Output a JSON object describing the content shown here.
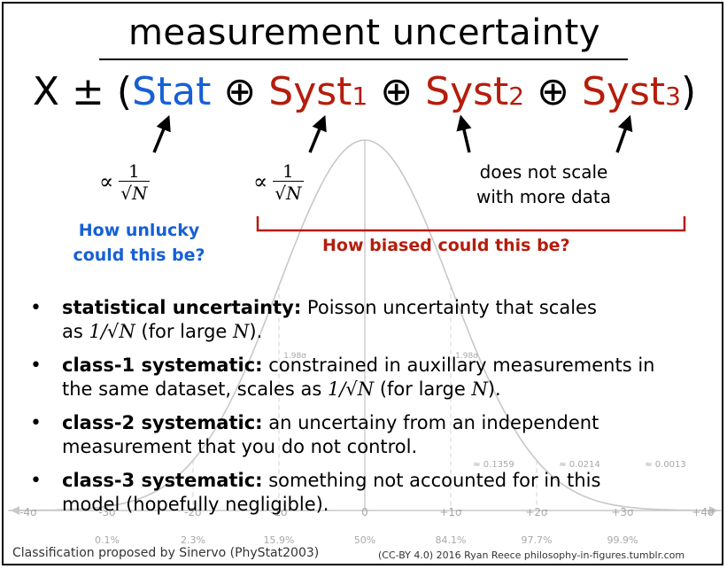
{
  "title": "measurement uncertainty",
  "formula": {
    "x_pm": "X ± (",
    "stat": "Stat",
    "oplus": "⊕",
    "syst": "Syst",
    "sub1": "1",
    "sub2": "2",
    "sub3": "3",
    "close": ")"
  },
  "annotations": {
    "proportional": "∝",
    "one": "1",
    "sqrt_n": "√N",
    "stat_question": [
      "How unlucky",
      "could this be?"
    ],
    "syst_question": "How biased could this be?",
    "no_scale": [
      "does not scale",
      "with more data"
    ]
  },
  "bullets": [
    {
      "term": "statistical uncertainty:",
      "line1": " Poisson uncertainty that scales",
      "line2_pre": "as ",
      "math_a": "1/√N",
      "line2_mid": " (for large ",
      "math_b": "N",
      "line2_post": ")."
    },
    {
      "term": "class-1 systematic:",
      "line1": " constrained in auxillary measurements in",
      "line2_pre": "the same dataset, scales as ",
      "math_a": "1/√N",
      "line2_mid": " (for large ",
      "math_b": "N",
      "line2_post": ")."
    },
    {
      "term": "class-2 systematic:",
      "line1": " an uncertainy from an independent",
      "line2": "measurement that you do not control."
    },
    {
      "term": "class-3 systematic:",
      "line1": " something not accounted for in this",
      "line2": "model  (hopefully negligible)."
    }
  ],
  "background_curve": {
    "sigma_labels": [
      "-4σ",
      "-3σ",
      "-2σ",
      "-1σ",
      "0",
      "+1σ",
      "+2σ",
      "+3σ",
      "+4σ"
    ],
    "percent_labels": [
      "0.1%",
      "2.3%",
      "15.9%",
      "50%",
      "84.1%",
      "97.7%",
      "99.9%"
    ],
    "area_labels": [
      "≈ 0.1359",
      "≈ 0.0214",
      "≈ 0.0013"
    ],
    "mean_marker_labels": [
      "1.98σ",
      "1.98σ"
    ]
  },
  "footer": {
    "credit": "Classification proposed by Sinervo (PhyStat2003)",
    "license": "(CC-BY 4.0)  2016 Ryan Reece  philosophy-in-figures.tumblr.com"
  },
  "colors": {
    "stat": "#1560d6",
    "syst": "#b51d0c",
    "curve": "#c8c8c8"
  }
}
